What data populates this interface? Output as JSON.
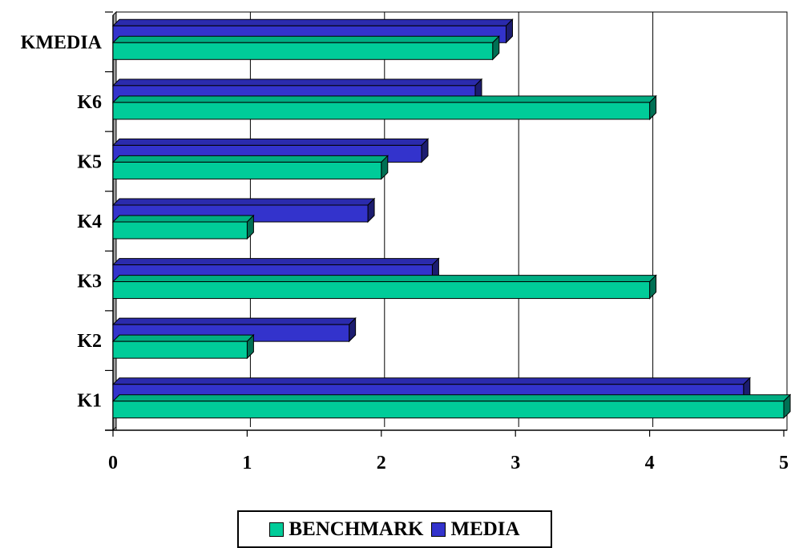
{
  "chart_data": {
    "type": "bar",
    "orientation": "horizontal",
    "three_d": true,
    "categories": [
      "K1",
      "K2",
      "K3",
      "K4",
      "K5",
      "K6",
      "KMEDIA"
    ],
    "series": [
      {
        "name": "BENCHMARK",
        "color": "#00cc99",
        "values": [
          5,
          1,
          4,
          1,
          2,
          4,
          2.83
        ]
      },
      {
        "name": "MEDIA",
        "color": "#3333cc",
        "values": [
          4.7,
          1.76,
          2.38,
          1.9,
          2.3,
          2.7,
          2.93
        ]
      }
    ],
    "xlim": [
      0,
      5
    ],
    "xticks": [
      "0",
      "1",
      "2",
      "3",
      "4",
      "5"
    ],
    "grid": true,
    "legend": "bottom-center"
  }
}
